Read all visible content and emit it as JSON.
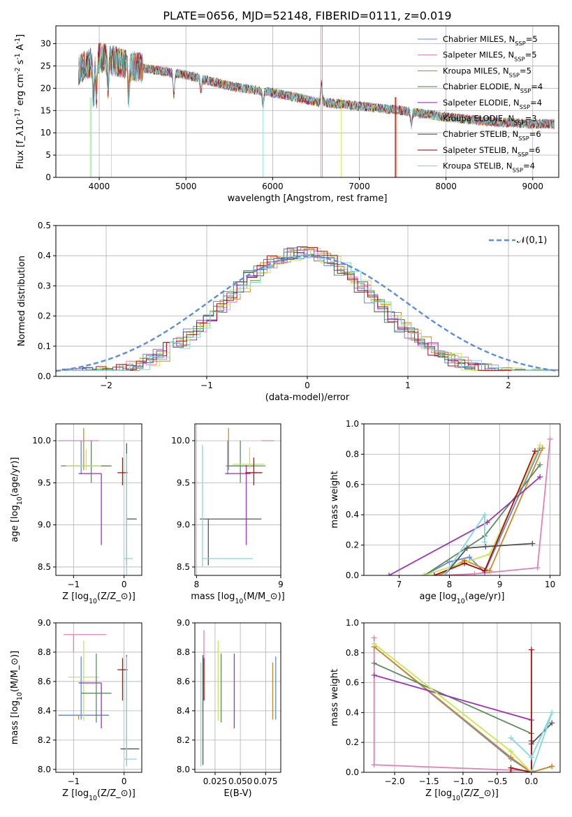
{
  "title": "PLATE=0656, MJD=52148, FIBERID=0111, z=0.019",
  "series": [
    {
      "name": "Chabrier MILES, N$_{SSP}$=5",
      "color": "#6688dd"
    },
    {
      "name": "Salpeter MILES, N$_{SSP}$=5",
      "color": "#e07fb8"
    },
    {
      "name": "Kroupa MILES, N$_{SSP}$=5",
      "color": "#cc8a22"
    },
    {
      "name": "Chabrier ELODIE, N$_{SSP}$=4",
      "color": "#5e8a5e"
    },
    {
      "name": "Salpeter ELODIE, N$_{SSP}$=4",
      "color": "#9a33b6"
    },
    {
      "name": "Kroupa ELODIE, N$_{SSP}$=3",
      "color": "#c8e650"
    },
    {
      "name": "Chabrier STELIB, N$_{SSP}$=6",
      "color": "#555555"
    },
    {
      "name": "Salpeter STELIB, N$_{SSP}$=6",
      "color": "#aa1111"
    },
    {
      "name": "Kroupa STELIB, N$_{SSP}$=4",
      "color": "#80d8e0"
    }
  ],
  "chart_data": [
    {
      "panel": "spectrum",
      "type": "line",
      "xlabel": "wavelength [Angstrom, rest frame]",
      "ylabel": "Flux [f$_\\lambda$10$^{-17}$ erg cm$^{-2}$ s$^{-1}$ A$^{-1}$]",
      "xlim": [
        3500,
        9300
      ],
      "ylim": [
        0,
        34
      ],
      "xticks": [
        4000,
        5000,
        6000,
        7000,
        8000,
        9000
      ],
      "yticks": [
        0,
        5,
        10,
        15,
        20,
        25,
        30
      ],
      "legend_position": "upper-right",
      "continuum_x": [
        3750,
        4000,
        4500,
        5000,
        5500,
        6000,
        6500,
        7000,
        7500,
        8000,
        8500,
        9000
      ],
      "continuum_y": [
        24,
        27,
        24.5,
        23,
        20.5,
        19,
        17,
        16,
        15,
        13.5,
        12.5,
        12
      ]
    },
    {
      "panel": "residuals",
      "type": "histogram",
      "xlabel": "(data-model)/error",
      "ylabel": "Normed distribution",
      "xlim": [
        -2.5,
        2.5
      ],
      "ylim": [
        0,
        0.5
      ],
      "xticks": [
        -2,
        -1,
        0,
        1,
        2
      ],
      "yticks": [
        0.0,
        0.1,
        0.2,
        0.3,
        0.4,
        0.5
      ],
      "reference_curve": "$\\mathcal{N}(0,1)$",
      "bin_width": 0.1
    },
    {
      "panel": "age-vs-Z",
      "type": "errorbar",
      "xlabel": "Z [log$_{10}$($Z/Z_\\odot$)]",
      "ylabel": "age  [log$_{10}$($age/yr$)]",
      "xlim": [
        -1.35,
        0.35
      ],
      "ylim": [
        8.4,
        10.2
      ],
      "xticks": [
        -1,
        0
      ],
      "yticks": [
        8.5,
        9.0,
        9.5,
        10.0
      ],
      "points": [
        {
          "series": 1,
          "x": -0.85,
          "y": 10.0,
          "xerr": [
            0.45,
            0.35
          ],
          "yerr": [
            0.0,
            0.0
          ]
        },
        {
          "series": 2,
          "x": -0.8,
          "y": 9.7,
          "xerr": [
            0.45,
            0.55
          ],
          "yerr": [
            0.05,
            0.45
          ]
        },
        {
          "series": 0,
          "x": -0.85,
          "y": 9.7,
          "xerr": [
            0.4,
            0.5
          ],
          "yerr": [
            0.1,
            0.3
          ]
        },
        {
          "series": 3,
          "x": -0.65,
          "y": 9.7,
          "xerr": [
            0.5,
            0.4
          ],
          "yerr": [
            0.2,
            0.3
          ]
        },
        {
          "series": 5,
          "x": -0.75,
          "y": 9.7,
          "xerr": [
            0.4,
            0.3
          ],
          "yerr": [
            0.05,
            0.2
          ]
        },
        {
          "series": 4,
          "x": -0.45,
          "y": 9.61,
          "xerr": [
            0.45,
            0.0
          ],
          "yerr": [
            0.85,
            0.0
          ]
        },
        {
          "series": 7,
          "x": -0.03,
          "y": 9.62,
          "xerr": [
            0.1,
            0.1
          ],
          "yerr": [
            0.15,
            0.18
          ]
        },
        {
          "series": 6,
          "x": 0.05,
          "y": 9.07,
          "xerr": [
            0.0,
            0.2
          ],
          "yerr": [
            0.55,
            0.9
          ]
        },
        {
          "series": 8,
          "x": 0.05,
          "y": 8.6,
          "xerr": [
            0.05,
            0.12
          ],
          "yerr": [
            0.25,
            1.25
          ]
        }
      ]
    },
    {
      "panel": "age-vs-mass",
      "type": "errorbar",
      "xlabel": "mass [log$_{10}$($M/M_\\odot$)]",
      "ylabel": "",
      "xlim": [
        7.98,
        9.0
      ],
      "ylim": [
        8.4,
        10.2
      ],
      "xticks": [
        8,
        9
      ],
      "yticks": [
        8.5,
        9.0,
        9.5,
        10.0
      ],
      "points": [
        {
          "series": 1,
          "x": 8.92,
          "y": 10.0,
          "xerr": [
            0.15,
            0.0
          ],
          "yerr": [
            0.0,
            0.0
          ]
        },
        {
          "series": 2,
          "x": 8.38,
          "y": 9.7,
          "xerr": [
            0.0,
            0.4
          ],
          "yerr": [
            0.05,
            0.45
          ]
        },
        {
          "series": 0,
          "x": 8.37,
          "y": 9.7,
          "xerr": [
            0.0,
            0.45
          ],
          "yerr": [
            0.1,
            0.3
          ]
        },
        {
          "series": 3,
          "x": 8.52,
          "y": 9.7,
          "xerr": [
            0.17,
            0.15
          ],
          "yerr": [
            0.2,
            0.3
          ]
        },
        {
          "series": 5,
          "x": 8.63,
          "y": 9.72,
          "xerr": [
            0.2,
            0.18
          ],
          "yerr": [
            0.05,
            0.2
          ]
        },
        {
          "series": 4,
          "x": 8.59,
          "y": 9.61,
          "xerr": [
            0.25,
            0.05
          ],
          "yerr": [
            0.85,
            0.1
          ]
        },
        {
          "series": 7,
          "x": 8.68,
          "y": 9.62,
          "xerr": [
            0.1,
            0.1
          ],
          "yerr": [
            0.15,
            0.18
          ]
        },
        {
          "series": 6,
          "x": 8.14,
          "y": 9.07,
          "xerr": [
            0.1,
            0.63
          ],
          "yerr": [
            0.55,
            0.0
          ]
        },
        {
          "series": 8,
          "x": 8.07,
          "y": 8.6,
          "xerr": [
            0.0,
            0.6
          ],
          "yerr": [
            0.1,
            1.35
          ]
        }
      ]
    },
    {
      "panel": "weight-vs-age",
      "type": "line",
      "xlabel": "age  [log$_{10}$($age/yr$)]",
      "ylabel": "mass weight",
      "xlim": [
        6.3,
        10.2
      ],
      "ylim": [
        0,
        1.0
      ],
      "xticks": [
        7,
        8,
        9,
        10
      ],
      "yticks": [
        0.0,
        0.2,
        0.4,
        0.6,
        0.8,
        1.0
      ],
      "series_points": [
        {
          "series": 0,
          "x": [
            7.5,
            8.0,
            8.4,
            8.7,
            9.8
          ],
          "y": [
            0.0,
            0.09,
            0.12,
            0.02,
            0.84
          ]
        },
        {
          "series": 1,
          "x": [
            7.8,
            8.5,
            9.75,
            10.0
          ],
          "y": [
            0.0,
            0.01,
            0.05,
            0.9
          ]
        },
        {
          "series": 2,
          "x": [
            7.8,
            8.3,
            8.8,
            9.85
          ],
          "y": [
            0.0,
            0.1,
            0.03,
            0.84
          ]
        },
        {
          "series": 3,
          "x": [
            7.5,
            8.7,
            9.8
          ],
          "y": [
            0.0,
            0.26,
            0.73
          ]
        },
        {
          "series": 4,
          "x": [
            6.8,
            8.75,
            9.8
          ],
          "y": [
            0.0,
            0.35,
            0.65
          ]
        },
        {
          "series": 5,
          "x": [
            7.5,
            8.8,
            9.8
          ],
          "y": [
            0.0,
            0.14,
            0.86
          ]
        },
        {
          "series": 6,
          "x": [
            7.9,
            8.35,
            8.72,
            9.65
          ],
          "y": [
            0.0,
            0.18,
            0.19,
            0.21
          ]
        },
        {
          "series": 7,
          "x": [
            7.7,
            8.3,
            8.7,
            9.7
          ],
          "y": [
            0.0,
            0.08,
            0.03,
            0.82
          ]
        },
        {
          "series": 8,
          "x": [
            7.9,
            8.7,
            8.7
          ],
          "y": [
            0.0,
            0.4,
            0.22
          ]
        }
      ]
    },
    {
      "panel": "mass-vs-Z",
      "type": "errorbar",
      "xlabel": "Z [log$_{10}$($Z/Z_\\odot$)]",
      "ylabel": "mass [log$_{10}$($M/M_\\odot$)]",
      "xlim": [
        -1.35,
        0.35
      ],
      "ylim": [
        7.98,
        9.0
      ],
      "xticks": [
        -1,
        0
      ],
      "yticks": [
        8.0,
        8.2,
        8.4,
        8.6,
        8.8,
        9.0
      ],
      "points": [
        {
          "series": 1,
          "x": -1.0,
          "y": 8.92,
          "xerr": [
            0.2,
            0.65
          ],
          "yerr": [
            0.12,
            0.0
          ]
        },
        {
          "series": 2,
          "x": -0.9,
          "y": 8.37,
          "xerr": [
            0.4,
            0.6
          ],
          "yerr": [
            0.03,
            0.0
          ]
        },
        {
          "series": 0,
          "x": -0.85,
          "y": 8.37,
          "xerr": [
            0.45,
            0.55
          ],
          "yerr": [
            0.03,
            0.4
          ]
        },
        {
          "series": 5,
          "x": -0.8,
          "y": 8.63,
          "xerr": [
            0.3,
            0.3
          ],
          "yerr": [
            0.3,
            0.25
          ]
        },
        {
          "series": 3,
          "x": -0.55,
          "y": 8.52,
          "xerr": [
            0.3,
            0.3
          ],
          "yerr": [
            0.2,
            0.27
          ]
        },
        {
          "series": 4,
          "x": -0.45,
          "y": 8.59,
          "xerr": [
            0.45,
            0.0
          ],
          "yerr": [
            0.31,
            0.0
          ]
        },
        {
          "series": 7,
          "x": -0.03,
          "y": 8.68,
          "xerr": [
            0.1,
            0.1
          ],
          "yerr": [
            0.21,
            0.08
          ]
        },
        {
          "series": 6,
          "x": 0.05,
          "y": 8.14,
          "xerr": [
            0.12,
            0.25
          ],
          "yerr": [
            0.11,
            0.64
          ]
        },
        {
          "series": 8,
          "x": 0.05,
          "y": 8.07,
          "xerr": [
            0.05,
            0.2
          ],
          "yerr": [
            0.05,
            0.7
          ]
        }
      ]
    },
    {
      "panel": "mass-vs-EBV",
      "type": "errorbar",
      "xlabel": "E(B-V)",
      "ylabel": "",
      "xlim": [
        0.005,
        0.09
      ],
      "ylim": [
        7.98,
        9.0
      ],
      "xticks": [
        0.025,
        0.05,
        0.075
      ],
      "xtick_labels": [
        "0.025",
        "0.050",
        "0.075"
      ],
      "yticks": [
        8.0,
        8.2,
        8.4,
        8.6,
        8.8,
        9.0
      ],
      "points": [
        {
          "series": 8,
          "x": 0.011,
          "y": 8.07,
          "yerr": [
            0.05,
            0.66
          ]
        },
        {
          "series": 6,
          "x": 0.013,
          "y": 8.14,
          "yerr": [
            0.11,
            0.64
          ]
        },
        {
          "series": 1,
          "x": 0.014,
          "y": 8.92,
          "yerr": [
            0.45,
            0.03
          ]
        },
        {
          "series": 7,
          "x": 0.014,
          "y": 8.68,
          "yerr": [
            0.21,
            0.08
          ]
        },
        {
          "series": 5,
          "x": 0.028,
          "y": 8.63,
          "yerr": [
            0.3,
            0.25
          ]
        },
        {
          "series": 3,
          "x": 0.031,
          "y": 8.52,
          "yerr": [
            0.2,
            0.27
          ]
        },
        {
          "series": 4,
          "x": 0.044,
          "y": 8.59,
          "yerr": [
            0.31,
            0.2
          ]
        },
        {
          "series": 2,
          "x": 0.082,
          "y": 8.37,
          "yerr": [
            0.03,
            0.36
          ]
        },
        {
          "series": 0,
          "x": 0.085,
          "y": 8.37,
          "yerr": [
            0.03,
            0.4
          ]
        }
      ]
    },
    {
      "panel": "weight-vs-Z",
      "type": "line",
      "xlabel": "Z [log$_{10}$($Z/Z_\\odot$)]",
      "ylabel": "mass weight",
      "xlim": [
        -2.45,
        0.42
      ],
      "ylim": [
        0,
        1.0
      ],
      "xticks": [
        -2.0,
        -1.5,
        -1.0,
        -0.5,
        0.0
      ],
      "yticks": [
        0.0,
        0.2,
        0.4,
        0.6,
        0.8,
        1.0
      ],
      "series_points": [
        {
          "series": 0,
          "x": [
            -2.3,
            -0.3,
            0.0,
            0.0,
            0.3
          ],
          "y": [
            0.84,
            0.09,
            0.0,
            0.0,
            0.04
          ]
        },
        {
          "series": 1,
          "x": [
            -2.3,
            -2.3,
            0.0,
            0.0
          ],
          "y": [
            0.9,
            0.05,
            0.01,
            0.0
          ]
        },
        {
          "series": 2,
          "x": [
            -2.3,
            -0.3,
            0.0,
            0.3
          ],
          "y": [
            0.84,
            0.1,
            0.0,
            0.04
          ]
        },
        {
          "series": 3,
          "x": [
            -2.3,
            0.0,
            0.0
          ],
          "y": [
            0.73,
            0.26,
            0.0
          ]
        },
        {
          "series": 4,
          "x": [
            -2.3,
            0.0,
            0.0
          ],
          "y": [
            0.65,
            0.35,
            0.0
          ]
        },
        {
          "series": 5,
          "x": [
            -2.3,
            -0.3,
            0.0
          ],
          "y": [
            0.86,
            0.14,
            0.0
          ]
        },
        {
          "series": 6,
          "x": [
            0.0,
            0.0,
            0.3
          ],
          "y": [
            0.21,
            0.19,
            0.33
          ]
        },
        {
          "series": 7,
          "x": [
            -0.3,
            -0.3,
            0.0,
            0.0
          ],
          "y": [
            0.0,
            0.03,
            0.0,
            0.82
          ]
        },
        {
          "series": 8,
          "x": [
            -0.3,
            0.0,
            0.3,
            0.0
          ],
          "y": [
            0.23,
            0.1,
            0.4,
            0.0
          ]
        }
      ]
    }
  ]
}
